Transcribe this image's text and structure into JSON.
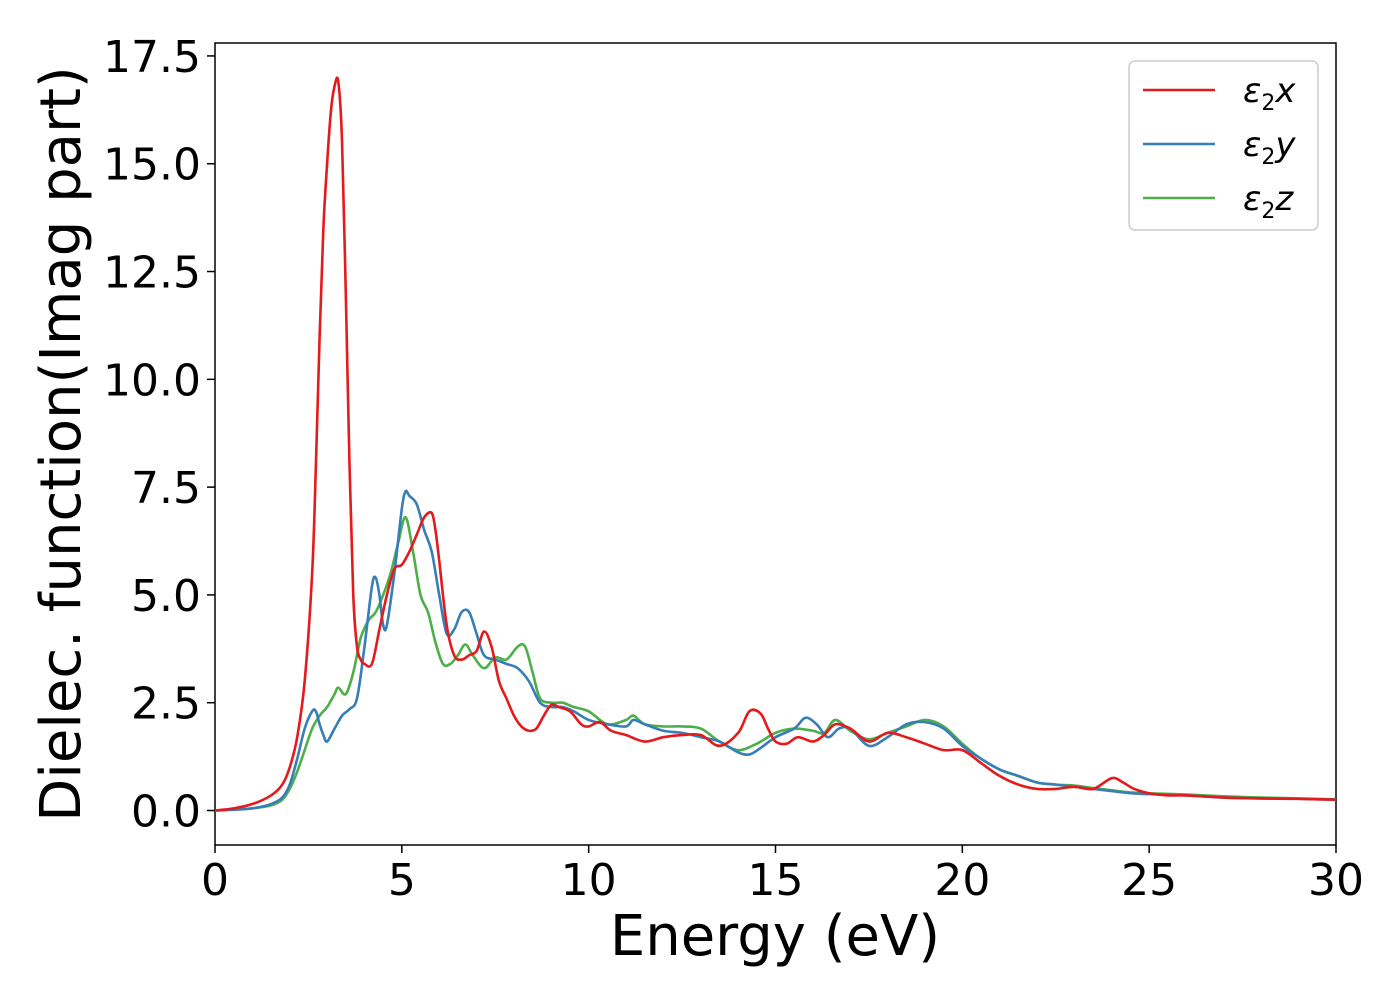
{
  "chart_data": {
    "type": "line",
    "xlabel": "Energy (eV)",
    "ylabel": "Dielec. function(Imag part)",
    "xlim": [
      0,
      30
    ],
    "ylim": [
      -0.8,
      17.8
    ],
    "xticks": [
      0,
      5,
      10,
      15,
      20,
      25,
      30
    ],
    "xtick_labels": [
      "0",
      "5",
      "10",
      "15",
      "20",
      "25",
      "30"
    ],
    "yticks": [
      0,
      2.5,
      5,
      7.5,
      10,
      12.5,
      15,
      17.5
    ],
    "ytick_labels": [
      "0.0",
      "2.5",
      "5.0",
      "7.5",
      "10.0",
      "12.5",
      "15.0",
      "17.5"
    ],
    "grid": false,
    "legend_position": "top-right",
    "series": [
      {
        "name": "ε2x",
        "legend_main": "ε",
        "legend_sub": "2",
        "legend_tail": "x",
        "color": "#e41a1c",
        "x": [
          0,
          0.5,
          1.0,
          1.5,
          1.8,
          2.0,
          2.2,
          2.4,
          2.6,
          2.7,
          2.8,
          2.9,
          3.0,
          3.1,
          3.2,
          3.3,
          3.4,
          3.5,
          3.6,
          3.7,
          3.8,
          3.9,
          4.0,
          4.2,
          4.4,
          4.6,
          4.8,
          5.0,
          5.2,
          5.4,
          5.6,
          5.8,
          5.9,
          6.0,
          6.2,
          6.4,
          6.6,
          6.8,
          7.0,
          7.2,
          7.4,
          7.6,
          7.8,
          8.0,
          8.2,
          8.4,
          8.6,
          8.8,
          9.0,
          9.2,
          9.5,
          9.8,
          10.0,
          10.3,
          10.6,
          11.0,
          11.5,
          12.0,
          12.5,
          13.0,
          13.5,
          14.0,
          14.3,
          14.6,
          14.8,
          15.0,
          15.3,
          15.6,
          16.0,
          16.3,
          16.6,
          17.0,
          17.5,
          18.0,
          18.5,
          19.0,
          19.5,
          20.0,
          20.5,
          21.0,
          21.5,
          22.0,
          22.5,
          23.0,
          23.5,
          24.0,
          24.3,
          24.6,
          25.0,
          25.5,
          26.0,
          27.0,
          28.0,
          29.0,
          30.0
        ],
        "y": [
          0.0,
          0.05,
          0.15,
          0.35,
          0.6,
          1.0,
          1.7,
          3.0,
          5.5,
          8.0,
          11.0,
          13.5,
          15.0,
          16.2,
          16.8,
          16.9,
          15.5,
          12.0,
          8.0,
          5.0,
          3.8,
          3.5,
          3.4,
          3.4,
          4.2,
          5.0,
          5.6,
          5.7,
          6.0,
          6.4,
          6.8,
          6.9,
          6.5,
          5.8,
          4.3,
          3.6,
          3.5,
          3.6,
          3.7,
          4.15,
          3.8,
          3.0,
          2.6,
          2.2,
          1.95,
          1.85,
          1.9,
          2.2,
          2.45,
          2.4,
          2.3,
          2.0,
          1.95,
          2.05,
          1.85,
          1.75,
          1.6,
          1.7,
          1.75,
          1.75,
          1.5,
          1.8,
          2.3,
          2.25,
          1.9,
          1.6,
          1.55,
          1.7,
          1.6,
          1.75,
          2.0,
          1.9,
          1.6,
          1.8,
          1.7,
          1.55,
          1.4,
          1.4,
          1.1,
          0.8,
          0.6,
          0.5,
          0.5,
          0.55,
          0.5,
          0.75,
          0.65,
          0.5,
          0.4,
          0.35,
          0.35,
          0.3,
          0.28,
          0.27,
          0.25
        ]
      },
      {
        "name": "ε2y",
        "legend_main": "ε",
        "legend_sub": "2",
        "legend_tail": "y",
        "color": "#377eb8",
        "x": [
          0,
          0.5,
          1.0,
          1.5,
          1.8,
          2.0,
          2.2,
          2.4,
          2.6,
          2.7,
          2.8,
          2.9,
          3.0,
          3.2,
          3.4,
          3.6,
          3.8,
          4.0,
          4.2,
          4.3,
          4.4,
          4.5,
          4.6,
          4.8,
          5.0,
          5.1,
          5.2,
          5.4,
          5.6,
          5.8,
          6.0,
          6.2,
          6.4,
          6.6,
          6.8,
          7.0,
          7.2,
          7.5,
          7.8,
          8.1,
          8.4,
          8.7,
          9.0,
          9.3,
          9.6,
          10.0,
          10.5,
          11.0,
          11.2,
          11.5,
          12.0,
          12.5,
          13.0,
          13.5,
          14.0,
          14.3,
          14.6,
          15.0,
          15.5,
          15.8,
          16.1,
          16.4,
          16.7,
          17.0,
          17.5,
          18.0,
          18.5,
          19.0,
          19.5,
          20.0,
          20.5,
          21.0,
          21.5,
          22.0,
          22.5,
          23.0,
          23.5,
          24.0,
          24.5,
          25.0,
          26.0,
          27.0,
          28.0,
          29.0,
          30.0
        ],
        "y": [
          0.0,
          0.02,
          0.05,
          0.15,
          0.3,
          0.6,
          1.2,
          1.9,
          2.3,
          2.3,
          2.0,
          1.75,
          1.6,
          1.9,
          2.2,
          2.35,
          2.6,
          3.8,
          5.2,
          5.4,
          5.0,
          4.3,
          4.3,
          5.5,
          7.0,
          7.4,
          7.3,
          7.1,
          6.5,
          6.0,
          5.0,
          4.1,
          4.2,
          4.6,
          4.6,
          4.1,
          3.6,
          3.5,
          3.4,
          3.3,
          3.0,
          2.5,
          2.4,
          2.4,
          2.3,
          2.1,
          2.0,
          1.95,
          2.1,
          2.0,
          1.85,
          1.8,
          1.7,
          1.6,
          1.35,
          1.3,
          1.45,
          1.7,
          1.9,
          2.15,
          2.0,
          1.7,
          1.9,
          1.9,
          1.5,
          1.7,
          2.0,
          2.05,
          1.9,
          1.5,
          1.2,
          0.95,
          0.8,
          0.65,
          0.6,
          0.55,
          0.5,
          0.45,
          0.4,
          0.38,
          0.35,
          0.3,
          0.28,
          0.27,
          0.25
        ]
      },
      {
        "name": "ε2z",
        "legend_main": "ε",
        "legend_sub": "2",
        "legend_tail": "z",
        "color": "#4daf4a",
        "x": [
          0,
          0.5,
          1.0,
          1.5,
          1.8,
          2.0,
          2.2,
          2.4,
          2.6,
          2.8,
          3.0,
          3.2,
          3.3,
          3.5,
          3.7,
          3.9,
          4.1,
          4.3,
          4.5,
          4.7,
          4.9,
          5.1,
          5.3,
          5.5,
          5.7,
          5.9,
          6.1,
          6.3,
          6.5,
          6.7,
          6.9,
          7.2,
          7.5,
          7.8,
          8.1,
          8.3,
          8.5,
          8.7,
          9.0,
          9.3,
          9.6,
          10.0,
          10.5,
          11.0,
          11.2,
          11.5,
          12.0,
          12.5,
          13.0,
          13.5,
          14.0,
          14.5,
          15.0,
          15.5,
          16.0,
          16.3,
          16.6,
          17.0,
          17.5,
          18.0,
          18.5,
          19.0,
          19.5,
          20.0,
          20.5,
          21.0,
          21.5,
          22.0,
          22.5,
          23.0,
          23.5,
          24.0,
          24.5,
          25.0,
          26.0,
          27.0,
          28.0,
          29.0,
          30.0
        ],
        "y": [
          0.0,
          0.02,
          0.05,
          0.12,
          0.25,
          0.5,
          0.9,
          1.4,
          1.9,
          2.2,
          2.4,
          2.7,
          2.85,
          2.7,
          3.2,
          4.0,
          4.4,
          4.6,
          5.0,
          5.5,
          6.2,
          6.8,
          6.0,
          5.0,
          4.6,
          3.9,
          3.4,
          3.4,
          3.6,
          3.85,
          3.6,
          3.3,
          3.55,
          3.5,
          3.8,
          3.8,
          3.2,
          2.6,
          2.5,
          2.5,
          2.4,
          2.3,
          2.0,
          2.1,
          2.2,
          2.0,
          1.95,
          1.95,
          1.9,
          1.6,
          1.4,
          1.55,
          1.8,
          1.9,
          1.85,
          1.8,
          2.1,
          1.85,
          1.65,
          1.8,
          1.95,
          2.1,
          1.95,
          1.55,
          1.2,
          0.95,
          0.8,
          0.65,
          0.6,
          0.58,
          0.52,
          0.47,
          0.42,
          0.4,
          0.37,
          0.33,
          0.3,
          0.28,
          0.26
        ]
      }
    ]
  }
}
